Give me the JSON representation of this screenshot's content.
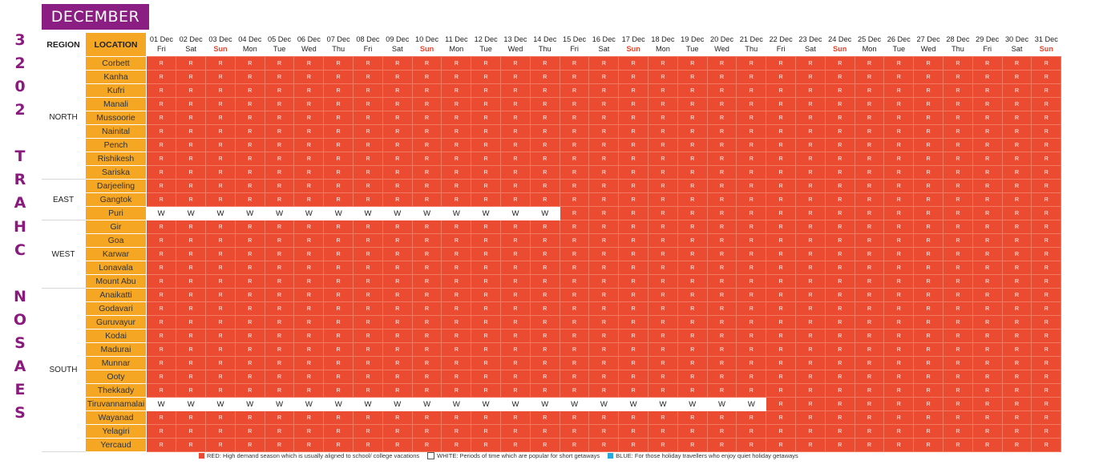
{
  "side_title": [
    "S",
    "E",
    "A",
    "S",
    "O",
    "N",
    " ",
    "C",
    "H",
    "A",
    "R",
    "T",
    " ",
    "2",
    "0",
    "2",
    "3"
  ],
  "month": "DECEMBER",
  "headers": {
    "region": "REGION",
    "location": "LOCATION"
  },
  "days": [
    {
      "date": "01 Dec",
      "day": "Fri"
    },
    {
      "date": "02 Dec",
      "day": "Sat"
    },
    {
      "date": "03 Dec",
      "day": "Sun"
    },
    {
      "date": "04 Dec",
      "day": "Mon"
    },
    {
      "date": "05 Dec",
      "day": "Tue"
    },
    {
      "date": "06 Dec",
      "day": "Wed"
    },
    {
      "date": "07 Dec",
      "day": "Thu"
    },
    {
      "date": "08 Dec",
      "day": "Fri"
    },
    {
      "date": "09 Dec",
      "day": "Sat"
    },
    {
      "date": "10 Dec",
      "day": "Sun"
    },
    {
      "date": "11 Dec",
      "day": "Mon"
    },
    {
      "date": "12 Dec",
      "day": "Tue"
    },
    {
      "date": "13 Dec",
      "day": "Wed"
    },
    {
      "date": "14 Dec",
      "day": "Thu"
    },
    {
      "date": "15 Dec",
      "day": "Fri"
    },
    {
      "date": "16 Dec",
      "day": "Sat"
    },
    {
      "date": "17 Dec",
      "day": "Sun"
    },
    {
      "date": "18 Dec",
      "day": "Mon"
    },
    {
      "date": "19 Dec",
      "day": "Tue"
    },
    {
      "date": "20 Dec",
      "day": "Wed"
    },
    {
      "date": "21 Dec",
      "day": "Thu"
    },
    {
      "date": "22 Dec",
      "day": "Fri"
    },
    {
      "date": "23 Dec",
      "day": "Sat"
    },
    {
      "date": "24 Dec",
      "day": "Sun"
    },
    {
      "date": "25 Dec",
      "day": "Mon"
    },
    {
      "date": "26 Dec",
      "day": "Tue"
    },
    {
      "date": "27 Dec",
      "day": "Wed"
    },
    {
      "date": "28 Dec",
      "day": "Thu"
    },
    {
      "date": "29 Dec",
      "day": "Fri"
    },
    {
      "date": "30 Dec",
      "day": "Sat"
    },
    {
      "date": "31 Dec",
      "day": "Sun"
    }
  ],
  "regions": [
    {
      "name": "NORTH",
      "locations": [
        {
          "name": "Corbett",
          "white_days": 0
        },
        {
          "name": "Kanha",
          "white_days": 0
        },
        {
          "name": "Kufri",
          "white_days": 0
        },
        {
          "name": "Manali",
          "white_days": 0
        },
        {
          "name": "Mussoorie",
          "white_days": 0
        },
        {
          "name": "Nainital",
          "white_days": 0
        },
        {
          "name": "Pench",
          "white_days": 0
        },
        {
          "name": "Rishikesh",
          "white_days": 0
        },
        {
          "name": "Sariska",
          "white_days": 0
        }
      ]
    },
    {
      "name": "EAST",
      "locations": [
        {
          "name": "Darjeeling",
          "white_days": 0
        },
        {
          "name": "Gangtok",
          "white_days": 0
        },
        {
          "name": "Puri",
          "white_days": 14
        }
      ]
    },
    {
      "name": "WEST",
      "locations": [
        {
          "name": "Gir",
          "white_days": 0
        },
        {
          "name": "Goa",
          "white_days": 0
        },
        {
          "name": "Karwar",
          "white_days": 0
        },
        {
          "name": "Lonavala",
          "white_days": 0
        },
        {
          "name": "Mount Abu",
          "white_days": 0
        }
      ]
    },
    {
      "name": "SOUTH",
      "locations": [
        {
          "name": "Anaikatti",
          "white_days": 0
        },
        {
          "name": "Godavari",
          "white_days": 0
        },
        {
          "name": "Guruvayur",
          "white_days": 0
        },
        {
          "name": "Kodai",
          "white_days": 0
        },
        {
          "name": "Madurai",
          "white_days": 0
        },
        {
          "name": "Munnar",
          "white_days": 0
        },
        {
          "name": "Ooty",
          "white_days": 0
        },
        {
          "name": "Thekkady",
          "white_days": 0
        },
        {
          "name": "Tiruvannamalai",
          "white_days": 21
        },
        {
          "name": "Wayanad",
          "white_days": 0
        },
        {
          "name": "Yelagiri",
          "white_days": 0
        },
        {
          "name": "Yercaud",
          "white_days": 0
        }
      ]
    }
  ],
  "cell_labels": {
    "red": "R",
    "white": "W"
  },
  "colors": {
    "red": "#ea4b31",
    "white": "#ffffff",
    "blue": "#29a8e0",
    "location_bg": "#f5a623",
    "title": "#8b1e82"
  },
  "legend": [
    {
      "color": "red",
      "text": "RED: High demand season which is usually aligned to school/ college vacations"
    },
    {
      "color": "white",
      "text": "WHITE: Periods of time which are popular for short getaways"
    },
    {
      "color": "blue",
      "text": "BLUE: For those holiday travellers who enjoy quiet holiday getaways"
    }
  ]
}
